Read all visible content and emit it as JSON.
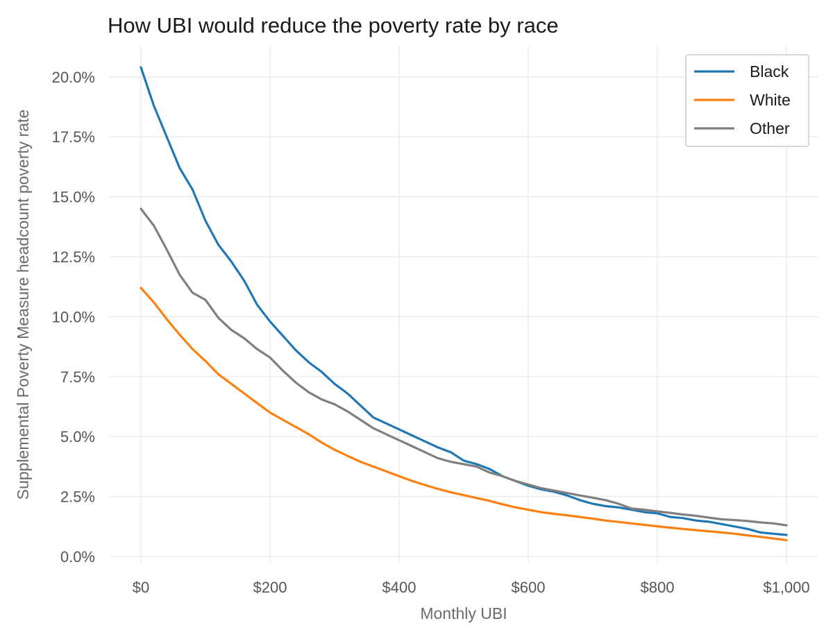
{
  "chart_data": {
    "type": "line",
    "title": "How UBI would reduce the poverty rate by race",
    "xlabel": "Monthly UBI",
    "ylabel": "Supplemental Poverty Measure headcount poverty rate",
    "xlim": [
      0,
      1000
    ],
    "ylim": [
      0,
      20.4
    ],
    "x_ticks": [
      0,
      200,
      400,
      600,
      800,
      1000
    ],
    "x_tick_labels": [
      "$0",
      "$200",
      "$400",
      "$600",
      "$800",
      "$1,000"
    ],
    "y_ticks": [
      0,
      2.5,
      5,
      7.5,
      10,
      12.5,
      15,
      17.5,
      20
    ],
    "y_tick_labels": [
      "0.0%",
      "2.5%",
      "5.0%",
      "7.5%",
      "10.0%",
      "12.5%",
      "15.0%",
      "17.5%",
      "20.0%"
    ],
    "grid": true,
    "legend_position": "top-right",
    "x": [
      0,
      20,
      40,
      60,
      80,
      100,
      120,
      140,
      160,
      180,
      200,
      220,
      240,
      260,
      280,
      300,
      320,
      340,
      360,
      380,
      400,
      420,
      440,
      460,
      480,
      500,
      520,
      540,
      560,
      580,
      600,
      620,
      640,
      660,
      680,
      700,
      720,
      740,
      760,
      780,
      800,
      820,
      840,
      860,
      880,
      900,
      920,
      940,
      960,
      980,
      1000
    ],
    "series": [
      {
        "name": "Black",
        "color": "#1f77b4",
        "values": [
          20.4,
          18.8,
          17.5,
          16.2,
          15.3,
          14.0,
          13.0,
          12.3,
          11.5,
          10.5,
          9.8,
          9.2,
          8.6,
          8.1,
          7.7,
          7.2,
          6.8,
          6.3,
          5.8,
          5.55,
          5.3,
          5.05,
          4.8,
          4.55,
          4.35,
          4.0,
          3.85,
          3.65,
          3.35,
          3.15,
          2.95,
          2.8,
          2.7,
          2.55,
          2.35,
          2.2,
          2.1,
          2.05,
          1.95,
          1.85,
          1.8,
          1.65,
          1.6,
          1.5,
          1.45,
          1.35,
          1.25,
          1.15,
          1.0,
          0.95,
          0.9
        ]
      },
      {
        "name": "White",
        "color": "#ff7f0e",
        "values": [
          11.2,
          10.6,
          9.9,
          9.25,
          8.65,
          8.15,
          7.6,
          7.2,
          6.8,
          6.4,
          6.0,
          5.7,
          5.4,
          5.1,
          4.75,
          4.45,
          4.2,
          3.95,
          3.75,
          3.55,
          3.35,
          3.15,
          2.98,
          2.82,
          2.68,
          2.56,
          2.44,
          2.32,
          2.18,
          2.05,
          1.95,
          1.85,
          1.78,
          1.72,
          1.65,
          1.58,
          1.5,
          1.44,
          1.38,
          1.32,
          1.26,
          1.2,
          1.15,
          1.1,
          1.05,
          1.0,
          0.95,
          0.88,
          0.82,
          0.75,
          0.68
        ]
      },
      {
        "name": "Other",
        "color": "#7f7f7f",
        "values": [
          14.5,
          13.8,
          12.8,
          11.75,
          11.0,
          10.7,
          9.95,
          9.45,
          9.1,
          8.65,
          8.3,
          7.75,
          7.25,
          6.85,
          6.55,
          6.35,
          6.05,
          5.7,
          5.35,
          5.1,
          4.85,
          4.6,
          4.35,
          4.1,
          3.95,
          3.85,
          3.75,
          3.5,
          3.35,
          3.15,
          3.0,
          2.85,
          2.75,
          2.65,
          2.55,
          2.45,
          2.35,
          2.2,
          2.0,
          1.95,
          1.88,
          1.82,
          1.75,
          1.7,
          1.62,
          1.55,
          1.52,
          1.48,
          1.42,
          1.38,
          1.3
        ]
      }
    ]
  }
}
